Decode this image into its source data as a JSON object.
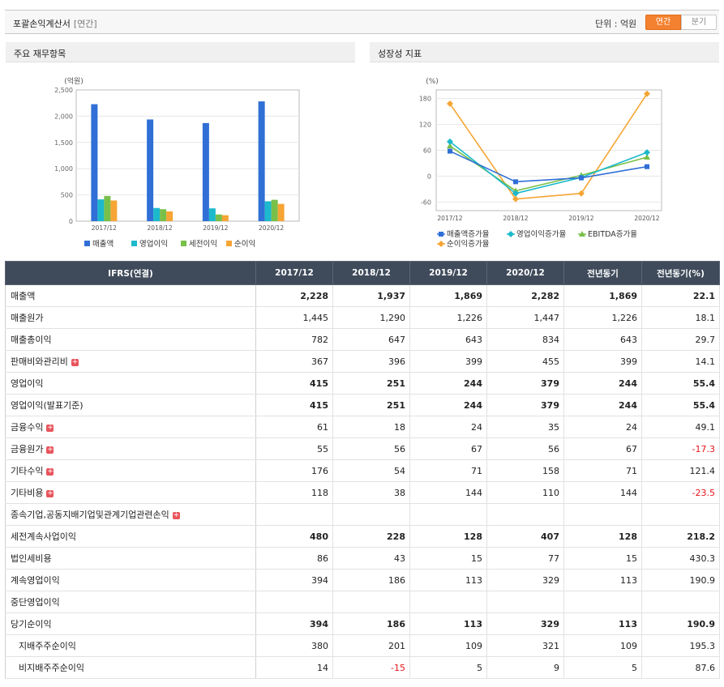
{
  "header": {
    "title": "포괄손익계산서",
    "tag": "[연간]",
    "unit_label": "단위 : 억원",
    "toggle": [
      "연간",
      "분기"
    ]
  },
  "panels": {
    "left_title": "주요 재무항목",
    "right_title": "성장성 지표"
  },
  "colors": {
    "revenue": "#2f6fd6",
    "op_income": "#1cb9cc",
    "pretax": "#78c04a",
    "net": "#f6a534",
    "header_bg": "#3f4b5b",
    "negative": "#e8141b",
    "accent": "#f4812f"
  },
  "chart_data": [
    {
      "type": "bar",
      "unit_label": "(억원)",
      "categories": [
        "2017/12",
        "2018/12",
        "2019/12",
        "2020/12"
      ],
      "ylim": [
        0,
        2500
      ],
      "yticks": [
        "0",
        "500",
        "1,000",
        "1,500",
        "2,000",
        "2,500"
      ],
      "ytick_values": [
        0,
        500,
        1000,
        1500,
        2000,
        2500
      ],
      "grid": true,
      "legend_position": "bottom",
      "series": [
        {
          "name": "매출액",
          "values": [
            2228,
            1937,
            1869,
            2282
          ]
        },
        {
          "name": "영업이익",
          "values": [
            415,
            251,
            244,
            379
          ]
        },
        {
          "name": "세전이익",
          "values": [
            480,
            228,
            128,
            407
          ]
        },
        {
          "name": "순이익",
          "values": [
            394,
            186,
            113,
            329
          ]
        }
      ]
    },
    {
      "type": "line",
      "unit_label": "(%)",
      "categories": [
        "2017/12",
        "2018/12",
        "2019/12",
        "2020/12"
      ],
      "ylim": [
        -80,
        200
      ],
      "yticks": [
        "180",
        "120",
        "60",
        "0",
        "-60"
      ],
      "ytick_values": [
        180,
        120,
        60,
        0,
        -60
      ],
      "grid": true,
      "legend_position": "bottom",
      "series": [
        {
          "name": "매출액증가율",
          "values": [
            58,
            -13,
            -4,
            22
          ],
          "marker": "square",
          "color": "#2f6fd6"
        },
        {
          "name": "영업이익증가율",
          "values": [
            80,
            -40,
            -3,
            55
          ],
          "marker": "diamond",
          "color": "#1cb9cc"
        },
        {
          "name": "EBITDA증가율",
          "values": [
            70,
            -34,
            2,
            44
          ],
          "marker": "triangle",
          "color": "#78c04a"
        },
        {
          "name": "순이익증가율",
          "values": [
            168,
            -53,
            -40,
            191
          ],
          "marker": "diamond",
          "color": "#f6a534"
        }
      ]
    }
  ],
  "table": {
    "headers": [
      "IFRS(연결)",
      "2017/12",
      "2018/12",
      "2019/12",
      "2020/12",
      "전년동기",
      "전년동기(%)"
    ],
    "rows": [
      {
        "label": "매출액",
        "values": [
          "2,228",
          "1,937",
          "1,869",
          "2,282",
          "1,869",
          "22.1"
        ],
        "bold": true
      },
      {
        "label": "매출원가",
        "values": [
          "1,445",
          "1,290",
          "1,226",
          "1,447",
          "1,226",
          "18.1"
        ]
      },
      {
        "label": "매출총이익",
        "values": [
          "782",
          "647",
          "643",
          "834",
          "643",
          "29.7"
        ]
      },
      {
        "label": "판매비와관리비",
        "values": [
          "367",
          "396",
          "399",
          "455",
          "399",
          "14.1"
        ],
        "expand": true
      },
      {
        "label": "영업이익",
        "values": [
          "415",
          "251",
          "244",
          "379",
          "244",
          "55.4"
        ],
        "bold": true
      },
      {
        "label": "영업이익(발표기준)",
        "values": [
          "415",
          "251",
          "244",
          "379",
          "244",
          "55.4"
        ],
        "bold": true
      },
      {
        "label": "금융수익",
        "values": [
          "61",
          "18",
          "24",
          "35",
          "24",
          "49.1"
        ],
        "expand": true
      },
      {
        "label": "금융원가",
        "values": [
          "55",
          "56",
          "67",
          "56",
          "67",
          "-17.3"
        ],
        "expand": true
      },
      {
        "label": "기타수익",
        "values": [
          "176",
          "54",
          "71",
          "158",
          "71",
          "121.4"
        ],
        "expand": true
      },
      {
        "label": "기타비용",
        "values": [
          "118",
          "38",
          "144",
          "110",
          "144",
          "-23.5"
        ],
        "expand": true
      },
      {
        "label": "종속기업,공동지배기업및관계기업관련손익",
        "values": [
          "",
          "",
          "",
          "",
          "",
          ""
        ],
        "expand": true
      },
      {
        "label": "세전계속사업이익",
        "values": [
          "480",
          "228",
          "128",
          "407",
          "128",
          "218.2"
        ],
        "bold": true
      },
      {
        "label": "법인세비용",
        "values": [
          "86",
          "43",
          "15",
          "77",
          "15",
          "430.3"
        ]
      },
      {
        "label": "계속영업이익",
        "values": [
          "394",
          "186",
          "113",
          "329",
          "113",
          "190.9"
        ]
      },
      {
        "label": "중단영업이익",
        "values": [
          "",
          "",
          "",
          "",
          "",
          ""
        ]
      },
      {
        "label": "당기순이익",
        "values": [
          "394",
          "186",
          "113",
          "329",
          "113",
          "190.9"
        ],
        "bold": true
      },
      {
        "label": "지배주주순이익",
        "values": [
          "380",
          "201",
          "109",
          "321",
          "109",
          "195.3"
        ],
        "sub": true
      },
      {
        "label": "비지배주주순이익",
        "values": [
          "14",
          "-15",
          "5",
          "9",
          "5",
          "87.6"
        ],
        "sub": true
      }
    ]
  }
}
